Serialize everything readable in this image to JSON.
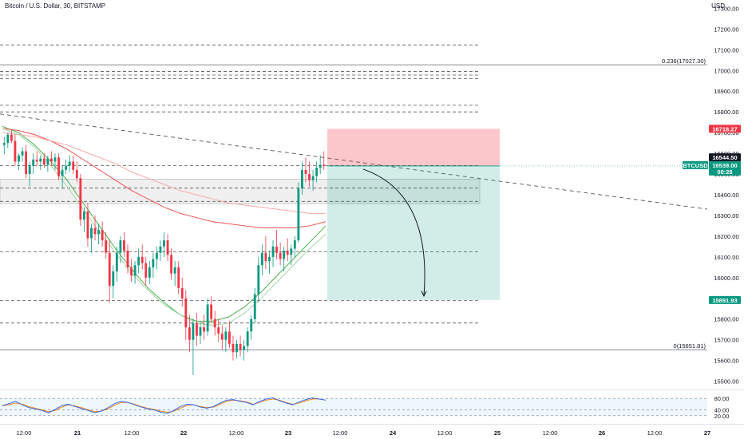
{
  "header": {
    "symbol_title": "Bitcoin / U.S. Dollar, 30, BITSTAMP",
    "currency": "USD"
  },
  "chart_data": {
    "type": "candlestick",
    "price_axis": {
      "ticks": [
        17300,
        17200,
        17100,
        17000,
        16900,
        16800,
        16700,
        16600,
        16500,
        16400,
        16300,
        16200,
        16100,
        16000,
        15900,
        15800,
        15700,
        15600,
        15500
      ],
      "tick_labels": [
        "17300.00",
        "17200.00",
        "17100.00",
        "17000.00",
        "16900.00",
        "16800.00",
        "16700.00",
        "16600.00",
        "16500.00",
        "16400.00",
        "16300.00",
        "16200.00",
        "16100.00",
        "16000.00",
        "15900.00",
        "15800.00",
        "15700.00",
        "15600.00",
        "15500.00"
      ],
      "ylim": [
        15460,
        17340
      ]
    },
    "time_axis": {
      "labels": [
        "12:00",
        "21",
        "12:00",
        "22",
        "12:00",
        "23",
        "12:00",
        "24",
        "12:00",
        "25",
        "12:00",
        "26",
        "12:00",
        "27"
      ]
    },
    "price_badges": [
      {
        "label": "16718.27",
        "value": 16718.27,
        "color": "#f23645"
      },
      {
        "label": "16544.50",
        "value": 16544.5,
        "color": "#131722"
      },
      {
        "label": "BTCUSD",
        "value": 16539.0,
        "color": "#089981"
      },
      {
        "label": "16539.00",
        "value": 16539.0,
        "color": "#089981"
      },
      {
        "label": "00:28",
        "value": 16539.0,
        "color": "#089981"
      },
      {
        "label": "15891.93",
        "value": 15891.93,
        "color": "#089981"
      }
    ],
    "fib_levels": [
      {
        "label": "0.236(17027.30)",
        "value": 17027.3
      },
      {
        "label": "0(15651.81)",
        "value": 15651.81
      }
    ],
    "support_resistance_dashed": [
      17123,
      16995,
      16978,
      16960,
      16832,
      16800,
      16541,
      16432,
      16368,
      16125,
      15890,
      15781
    ],
    "trendline": {
      "from": {
        "index": 0,
        "price": 16790
      },
      "to": {
        "index": 200,
        "price": 16318
      }
    },
    "consolidation_zone": {
      "from_index": 0,
      "to_index": 138,
      "low": 16357,
      "high": 16475
    },
    "position": {
      "type": "short",
      "entry": 16539.0,
      "stop": 16718.27,
      "target": 15891.93
    },
    "last_price": 16539.0,
    "candles_ohlc": [
      [
        16640,
        16680,
        16595,
        16650
      ],
      [
        16650,
        16700,
        16625,
        16690
      ],
      [
        16690,
        16715,
        16650,
        16660
      ],
      [
        16660,
        16690,
        16540,
        16560
      ],
      [
        16560,
        16600,
        16520,
        16590
      ],
      [
        16590,
        16630,
        16560,
        16610
      ],
      [
        16610,
        16640,
        16480,
        16500
      ],
      [
        16500,
        16560,
        16440,
        16540
      ],
      [
        16540,
        16600,
        16500,
        16570
      ],
      [
        16570,
        16610,
        16540,
        16560
      ],
      [
        16560,
        16590,
        16520,
        16575
      ],
      [
        16575,
        16600,
        16530,
        16545
      ],
      [
        16545,
        16590,
        16510,
        16575
      ],
      [
        16575,
        16610,
        16540,
        16560
      ],
      [
        16560,
        16600,
        16520,
        16580
      ],
      [
        16580,
        16600,
        16470,
        16490
      ],
      [
        16490,
        16540,
        16430,
        16520
      ],
      [
        16520,
        16570,
        16500,
        16540
      ],
      [
        16540,
        16590,
        16510,
        16560
      ],
      [
        16560,
        16590,
        16500,
        16520
      ],
      [
        16520,
        16560,
        16460,
        16480
      ],
      [
        16480,
        16500,
        16250,
        16280
      ],
      [
        16280,
        16340,
        16220,
        16320
      ],
      [
        16320,
        16360,
        16150,
        16190
      ],
      [
        16190,
        16260,
        16120,
        16240
      ],
      [
        16240,
        16300,
        16180,
        16210
      ],
      [
        16210,
        16260,
        16160,
        16230
      ],
      [
        16230,
        16270,
        16150,
        16180
      ],
      [
        16180,
        16220,
        16090,
        16120
      ],
      [
        16120,
        16180,
        15880,
        15960
      ],
      [
        15960,
        16060,
        15900,
        16030
      ],
      [
        16030,
        16150,
        15980,
        16120
      ],
      [
        16120,
        16200,
        16070,
        16180
      ],
      [
        16180,
        16220,
        16100,
        16130
      ],
      [
        16130,
        16160,
        16020,
        16050
      ],
      [
        16050,
        16090,
        15980,
        16010
      ],
      [
        16010,
        16080,
        15970,
        16060
      ],
      [
        16060,
        16140,
        16020,
        16100
      ],
      [
        16100,
        16160,
        16040,
        16070
      ],
      [
        16070,
        16100,
        15960,
        16000
      ],
      [
        16000,
        16080,
        15970,
        16050
      ],
      [
        16050,
        16120,
        16000,
        16090
      ],
      [
        16090,
        16150,
        16040,
        16120
      ],
      [
        16120,
        16180,
        16080,
        16150
      ],
      [
        16150,
        16220,
        16100,
        16180
      ],
      [
        16180,
        16210,
        16080,
        16110
      ],
      [
        16110,
        16140,
        15990,
        16020
      ],
      [
        16020,
        16080,
        15960,
        16050
      ],
      [
        16050,
        16080,
        15920,
        15950
      ],
      [
        15950,
        16000,
        15860,
        15900
      ],
      [
        15900,
        15940,
        15700,
        15760
      ],
      [
        15760,
        15820,
        15640,
        15700
      ],
      [
        15700,
        15800,
        15530,
        15780
      ],
      [
        15780,
        15830,
        15670,
        15720
      ],
      [
        15720,
        15790,
        15680,
        15760
      ],
      [
        15760,
        15820,
        15700,
        15740
      ],
      [
        15740,
        15900,
        15720,
        15870
      ],
      [
        15870,
        15910,
        15780,
        15800
      ],
      [
        15800,
        15840,
        15720,
        15760
      ],
      [
        15760,
        15800,
        15690,
        15730
      ],
      [
        15730,
        15770,
        15650,
        15700
      ],
      [
        15700,
        15760,
        15640,
        15740
      ],
      [
        15740,
        15790,
        15660,
        15680
      ],
      [
        15680,
        15720,
        15600,
        15640
      ],
      [
        15640,
        15700,
        15610,
        15680
      ],
      [
        15680,
        15720,
        15620,
        15650
      ],
      [
        15650,
        15700,
        15600,
        15670
      ],
      [
        15670,
        15760,
        15640,
        15740
      ],
      [
        15740,
        15820,
        15700,
        15800
      ],
      [
        15800,
        15950,
        15780,
        15920
      ],
      [
        15920,
        16100,
        15880,
        16060
      ],
      [
        16060,
        16160,
        16010,
        16120
      ],
      [
        16120,
        16200,
        16040,
        16080
      ],
      [
        16080,
        16130,
        16020,
        16100
      ],
      [
        16100,
        16180,
        16050,
        16150
      ],
      [
        16150,
        16230,
        16090,
        16120
      ],
      [
        16120,
        16170,
        16060,
        16090
      ],
      [
        16090,
        16150,
        16030,
        16130
      ],
      [
        16130,
        16190,
        16080,
        16110
      ],
      [
        16110,
        16160,
        16060,
        16140
      ],
      [
        16140,
        16200,
        16100,
        16180
      ],
      [
        16180,
        16460,
        16170,
        16430
      ],
      [
        16430,
        16560,
        16400,
        16520
      ],
      [
        16520,
        16580,
        16460,
        16500
      ],
      [
        16500,
        16560,
        16440,
        16470
      ],
      [
        16470,
        16520,
        16420,
        16490
      ],
      [
        16490,
        16560,
        16460,
        16530
      ],
      [
        16530,
        16590,
        16500,
        16545
      ],
      [
        16545,
        16610,
        16520,
        16539
      ]
    ],
    "moving_averages": [
      {
        "color": "#4caf50",
        "values": [
          16730,
          16700,
          16640,
          16560,
          16470,
          16360,
          16250,
          16140,
          16040,
          15950,
          15880,
          15820,
          15790,
          15790,
          15810,
          15860,
          15930,
          16010,
          16090,
          16170,
          16250
        ]
      },
      {
        "color": "#ef5350",
        "values": [
          16720,
          16710,
          16690,
          16660,
          16620,
          16570,
          16520,
          16470,
          16420,
          16380,
          16340,
          16310,
          16290,
          16270,
          16260,
          16250,
          16240,
          16240,
          16240,
          16250,
          16270
        ]
      },
      {
        "color": "#f8a8a8",
        "values": [
          16700,
          16690,
          16680,
          16660,
          16640,
          16610,
          16580,
          16550,
          16510,
          16480,
          16450,
          16420,
          16400,
          16380,
          16360,
          16350,
          16340,
          16330,
          16320,
          16310,
          16310
        ]
      },
      {
        "color": "#a5d6a7",
        "values": [
          16720,
          16690,
          16630,
          16540,
          16440,
          16330,
          16220,
          16120,
          16020,
          15940,
          15870,
          15820,
          15780,
          15770,
          15780,
          15830,
          15900,
          15980,
          16060,
          16140,
          16210
        ]
      }
    ],
    "rsi": {
      "levels": [
        80,
        40,
        20
      ],
      "level_labels": [
        "80.00",
        "40.00",
        "20.00"
      ],
      "blue": [
        55,
        62,
        70,
        58,
        48,
        44,
        38,
        30,
        42,
        55,
        60,
        52,
        45,
        38,
        30,
        36,
        48,
        62,
        70,
        66,
        58,
        50,
        44,
        40,
        32,
        28,
        38,
        52,
        60,
        58,
        50,
        46,
        52,
        64,
        74,
        76,
        70,
        66,
        58,
        70,
        78,
        82,
        72,
        64,
        58,
        68,
        76,
        82,
        78,
        74
      ],
      "orange": [
        54,
        58,
        64,
        60,
        52,
        46,
        40,
        34,
        38,
        50,
        58,
        54,
        48,
        40,
        34,
        36,
        44,
        56,
        66,
        66,
        60,
        52,
        46,
        42,
        36,
        32,
        36,
        46,
        56,
        58,
        52,
        48,
        50,
        60,
        70,
        74,
        72,
        68,
        60,
        66,
        74,
        78,
        74,
        66,
        60,
        64,
        72,
        78,
        78,
        74
      ]
    }
  }
}
